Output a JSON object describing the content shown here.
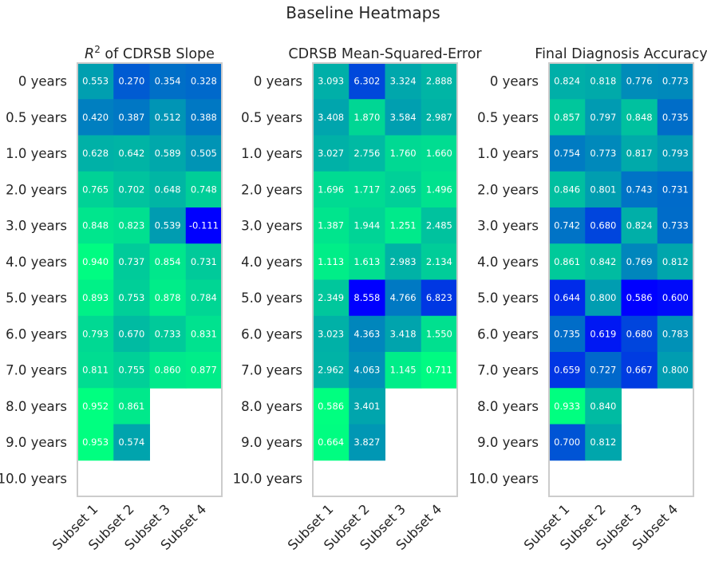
{
  "title": "Baseline Heatmaps",
  "chart_data": [
    {
      "type": "heatmap",
      "title_prefix": "R",
      "title_sup": "2",
      "title_rest": " of CDRSB Slope",
      "rows": [
        "0 years",
        "0.5 years",
        "1.0 years",
        "2.0 years",
        "3.0 years",
        "4.0 years",
        "5.0 years",
        "6.0 years",
        "7.0 years",
        "8.0 years",
        "9.0 years",
        "10.0 years"
      ],
      "cols": [
        "Subset 1",
        "Subset 2",
        "Subset 3",
        "Subset 4"
      ],
      "values": [
        [
          0.553,
          0.27,
          0.354,
          0.328
        ],
        [
          0.42,
          0.387,
          0.512,
          0.388
        ],
        [
          0.628,
          0.642,
          0.589,
          0.505
        ],
        [
          0.765,
          0.702,
          0.648,
          0.748
        ],
        [
          0.848,
          0.823,
          0.539,
          -0.111
        ],
        [
          0.94,
          0.737,
          0.854,
          0.731
        ],
        [
          0.893,
          0.753,
          0.878,
          0.784
        ],
        [
          0.793,
          0.67,
          0.733,
          0.831
        ],
        [
          0.811,
          0.755,
          0.86,
          0.877
        ],
        [
          0.952,
          0.861,
          null,
          null
        ],
        [
          0.953,
          0.574,
          null,
          null
        ],
        [
          null,
          null,
          null,
          null
        ]
      ],
      "labels": [
        [
          "0.553",
          "0.270",
          "0.354",
          "0.328"
        ],
        [
          "0.420",
          "0.387",
          "0.512",
          "0.388"
        ],
        [
          "0.628",
          "0.642",
          "0.589",
          "0.505"
        ],
        [
          "0.765",
          "0.702",
          "0.648",
          "0.748"
        ],
        [
          "0.848",
          "0.823",
          "0.539",
          "-0.111"
        ],
        [
          "0.940",
          "0.737",
          "0.854",
          "0.731"
        ],
        [
          "0.893",
          "0.753",
          "0.878",
          "0.784"
        ],
        [
          "0.793",
          "0.670",
          "0.733",
          "0.831"
        ],
        [
          "0.811",
          "0.755",
          "0.860",
          "0.877"
        ],
        [
          "0.952",
          "0.861",
          null,
          null
        ],
        [
          "0.953",
          "0.574",
          null,
          null
        ],
        [
          null,
          null,
          null,
          null
        ]
      ],
      "higher_is_greener": true
    },
    {
      "type": "heatmap",
      "title_prefix": "CDRSB Mean-Squared-Error",
      "title_sup": "",
      "title_rest": "",
      "rows": [
        "0 years",
        "0.5 years",
        "1.0 years",
        "2.0 years",
        "3.0 years",
        "4.0 years",
        "5.0 years",
        "6.0 years",
        "7.0 years",
        "8.0 years",
        "9.0 years",
        "10.0 years"
      ],
      "cols": [
        "Subset 1",
        "Subset 2",
        "Subset 3",
        "Subset 4"
      ],
      "values": [
        [
          3.093,
          6.302,
          3.324,
          2.888
        ],
        [
          3.408,
          1.87,
          3.584,
          2.987
        ],
        [
          3.027,
          2.756,
          1.76,
          1.66
        ],
        [
          1.696,
          1.717,
          2.065,
          1.496
        ],
        [
          1.387,
          1.944,
          1.251,
          2.485
        ],
        [
          1.113,
          1.613,
          2.983,
          2.134
        ],
        [
          2.349,
          8.558,
          4.766,
          6.823
        ],
        [
          3.023,
          4.363,
          3.418,
          1.55
        ],
        [
          2.962,
          4.063,
          1.145,
          0.711
        ],
        [
          0.586,
          3.401,
          null,
          null
        ],
        [
          0.664,
          3.827,
          null,
          null
        ],
        [
          null,
          null,
          null,
          null
        ]
      ],
      "labels": [
        [
          "3.093",
          "6.302",
          "3.324",
          "2.888"
        ],
        [
          "3.408",
          "1.870",
          "3.584",
          "2.987"
        ],
        [
          "3.027",
          "2.756",
          "1.760",
          "1.660"
        ],
        [
          "1.696",
          "1.717",
          "2.065",
          "1.496"
        ],
        [
          "1.387",
          "1.944",
          "1.251",
          "2.485"
        ],
        [
          "1.113",
          "1.613",
          "2.983",
          "2.134"
        ],
        [
          "2.349",
          "8.558",
          "4.766",
          "6.823"
        ],
        [
          "3.023",
          "4.363",
          "3.418",
          "1.550"
        ],
        [
          "2.962",
          "4.063",
          "1.145",
          "0.711"
        ],
        [
          "0.586",
          "3.401",
          null,
          null
        ],
        [
          "0.664",
          "3.827",
          null,
          null
        ],
        [
          null,
          null,
          null,
          null
        ]
      ],
      "higher_is_greener": false
    },
    {
      "type": "heatmap",
      "title_prefix": "Final Diagnosis Accuracy",
      "title_sup": "",
      "title_rest": "",
      "rows": [
        "0 years",
        "0.5 years",
        "1.0 years",
        "2.0 years",
        "3.0 years",
        "4.0 years",
        "5.0 years",
        "6.0 years",
        "7.0 years",
        "8.0 years",
        "9.0 years",
        "10.0 years"
      ],
      "cols": [
        "Subset 1",
        "Subset 2",
        "Subset 3",
        "Subset 4"
      ],
      "values": [
        [
          0.824,
          0.818,
          0.776,
          0.773
        ],
        [
          0.857,
          0.797,
          0.848,
          0.735
        ],
        [
          0.754,
          0.773,
          0.817,
          0.793
        ],
        [
          0.846,
          0.801,
          0.743,
          0.731
        ],
        [
          0.742,
          0.68,
          0.824,
          0.733
        ],
        [
          0.861,
          0.842,
          0.769,
          0.812
        ],
        [
          0.644,
          0.8,
          0.586,
          0.6
        ],
        [
          0.735,
          0.619,
          0.68,
          0.783
        ],
        [
          0.659,
          0.727,
          0.667,
          0.8
        ],
        [
          0.933,
          0.84,
          null,
          null
        ],
        [
          0.7,
          0.812,
          null,
          null
        ],
        [
          null,
          null,
          null,
          null
        ]
      ],
      "labels": [
        [
          "0.824",
          "0.818",
          "0.776",
          "0.773"
        ],
        [
          "0.857",
          "0.797",
          "0.848",
          "0.735"
        ],
        [
          "0.754",
          "0.773",
          "0.817",
          "0.793"
        ],
        [
          "0.846",
          "0.801",
          "0.743",
          "0.731"
        ],
        [
          "0.742",
          "0.680",
          "0.824",
          "0.733"
        ],
        [
          "0.861",
          "0.842",
          "0.769",
          "0.812"
        ],
        [
          "0.644",
          "0.800",
          "0.586",
          "0.600"
        ],
        [
          "0.735",
          "0.619",
          "0.680",
          "0.783"
        ],
        [
          "0.659",
          "0.727",
          "0.667",
          "0.800"
        ],
        [
          "0.933",
          "0.840",
          null,
          null
        ],
        [
          "0.700",
          "0.812",
          null,
          null
        ],
        [
          null,
          null,
          null,
          null
        ]
      ],
      "higher_is_greener": true
    }
  ]
}
